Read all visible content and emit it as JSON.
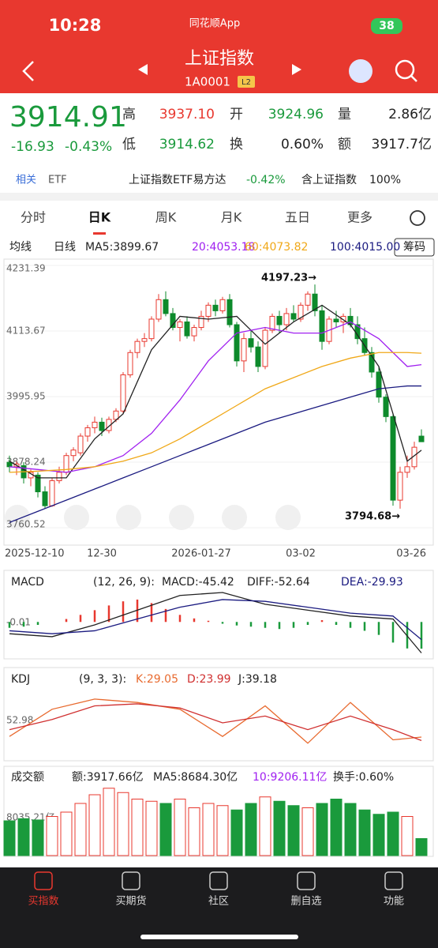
{
  "status_bar": {
    "time": "10:28",
    "app": "同花顺App",
    "battery": "38"
  },
  "header": {
    "title": "上证指数",
    "code": "1A0001",
    "level": "L2"
  },
  "quote": {
    "price": "3914.91",
    "change": "-16.93",
    "change_pct": "-0.43%",
    "high_label": "高",
    "high": "3937.10",
    "open_label": "开",
    "open": "3924.96",
    "volume_label": "量",
    "volume": "2.86亿",
    "low_label": "低",
    "low": "3914.62",
    "turnover_label": "换",
    "turnover": "0.60%",
    "amount_label": "额",
    "amount": "3917.7亿"
  },
  "related": {
    "tag": "相关",
    "etf": "ETF",
    "fund": "上证指数ETF易方达",
    "fund_change": "-0.42%",
    "holding": "含上证指数",
    "holding_pct": "100%"
  },
  "tabs": [
    "分时",
    "日K",
    "周K",
    "月K",
    "五日",
    "更多"
  ],
  "ma_bar": {
    "mode": "均线",
    "period": "日线",
    "ma5": "MA5:3899.67",
    "ma20": "20:4053.18",
    "ma60": "60:4073.82",
    "ma100": "100:4015.00",
    "chips": "筹码"
  },
  "chart_data": {
    "type": "candlestick",
    "ylim": [
      3760.52,
      4231.39
    ],
    "yticks": [
      4231.39,
      4113.67,
      3995.95,
      3878.24,
      3760.52
    ],
    "annotations": [
      "4197.23→",
      "3794.68→"
    ],
    "categories": [
      "2025-12-10",
      null,
      null,
      null,
      null,
      null,
      null,
      null,
      null,
      null,
      null,
      null,
      null,
      "12-30",
      null,
      null,
      null,
      null,
      null,
      null,
      null,
      null,
      null,
      null,
      null,
      null,
      null,
      "2026-01-27",
      null,
      null,
      null,
      null,
      null,
      null,
      null,
      null,
      null,
      null,
      null,
      null,
      null,
      "03-02",
      null,
      null,
      null,
      null,
      null,
      null,
      null,
      null,
      null,
      null,
      null,
      null,
      null,
      null,
      null,
      null,
      "03-26"
    ],
    "ohlc": [
      [
        3878,
        3890,
        3860,
        3870
      ],
      [
        3870,
        3880,
        3855,
        3875
      ],
      [
        3872,
        3878,
        3840,
        3850
      ],
      [
        3850,
        3865,
        3835,
        3860
      ],
      [
        3855,
        3860,
        3815,
        3825
      ],
      [
        3825,
        3835,
        3795,
        3800
      ],
      [
        3800,
        3850,
        3798,
        3845
      ],
      [
        3845,
        3870,
        3840,
        3860
      ],
      [
        3860,
        3895,
        3855,
        3890
      ],
      [
        3890,
        3905,
        3880,
        3900
      ],
      [
        3895,
        3930,
        3890,
        3925
      ],
      [
        3925,
        3945,
        3915,
        3940
      ],
      [
        3940,
        3960,
        3930,
        3950
      ],
      [
        3950,
        3958,
        3925,
        3935
      ],
      [
        3935,
        3960,
        3930,
        3955
      ],
      [
        3955,
        3975,
        3950,
        3970
      ],
      [
        3970,
        4040,
        3965,
        4035
      ],
      [
        4035,
        4080,
        4030,
        4075
      ],
      [
        4075,
        4100,
        4065,
        4095
      ],
      [
        4095,
        4110,
        4085,
        4100
      ],
      [
        4100,
        4140,
        4095,
        4135
      ],
      [
        4135,
        4180,
        4130,
        4170
      ],
      [
        4170,
        4185,
        4140,
        4145
      ],
      [
        4145,
        4155,
        4115,
        4120
      ],
      [
        4120,
        4135,
        4095,
        4130
      ],
      [
        4130,
        4140,
        4100,
        4105
      ],
      [
        4105,
        4125,
        4095,
        4120
      ],
      [
        4120,
        4150,
        4115,
        4140
      ],
      [
        4140,
        4165,
        4130,
        4160
      ],
      [
        4160,
        4170,
        4140,
        4150
      ],
      [
        4150,
        4175,
        4145,
        4170
      ],
      [
        4170,
        4180,
        4120,
        4125
      ],
      [
        4125,
        4130,
        4050,
        4060
      ],
      [
        4060,
        4110,
        4040,
        4100
      ],
      [
        4100,
        4115,
        4075,
        4085
      ],
      [
        4085,
        4095,
        4040,
        4050
      ],
      [
        4050,
        4120,
        4045,
        4115
      ],
      [
        4115,
        4145,
        4110,
        4140
      ],
      [
        4140,
        4150,
        4110,
        4125
      ],
      [
        4125,
        4155,
        4115,
        4145
      ],
      [
        4145,
        4160,
        4130,
        4135
      ],
      [
        4135,
        4165,
        4130,
        4160
      ],
      [
        4160,
        4185,
        4150,
        4180
      ],
      [
        4180,
        4197.23,
        4140,
        4150
      ],
      [
        4150,
        4160,
        4080,
        4095
      ],
      [
        4095,
        4140,
        4090,
        4135
      ],
      [
        4135,
        4150,
        4120,
        4130
      ],
      [
        4130,
        4145,
        4110,
        4140
      ],
      [
        4140,
        4155,
        4120,
        4125
      ],
      [
        4125,
        4140,
        4090,
        4100
      ],
      [
        4100,
        4120,
        4070,
        4075
      ],
      [
        4075,
        4085,
        4030,
        4040
      ],
      [
        4040,
        4050,
        3985,
        3995
      ],
      [
        3995,
        4000,
        3950,
        3960
      ],
      [
        3960,
        3965,
        3800,
        3810
      ],
      [
        3810,
        3870,
        3794.68,
        3860
      ],
      [
        3860,
        3890,
        3850,
        3870
      ],
      [
        3870,
        3915,
        3865,
        3905
      ],
      [
        3924.96,
        3937.1,
        3914.62,
        3914.91
      ]
    ],
    "up_color": "#e8382f",
    "down_color": "#0d8a2b",
    "series": [
      {
        "name": "MA5",
        "color": "#222222",
        "x": [
          0,
          4,
          8,
          12,
          16,
          20,
          24,
          28,
          32,
          36,
          40,
          44,
          48,
          52,
          56,
          58
        ],
        "values": [
          3880,
          3850,
          3850,
          3920,
          3965,
          4080,
          4140,
          4135,
          4140,
          4090,
          4130,
          4160,
          4125,
          4050,
          3880,
          3899.67
        ]
      },
      {
        "name": "20",
        "color": "#a020f0",
        "x": [
          0,
          4,
          8,
          12,
          16,
          20,
          24,
          28,
          32,
          36,
          40,
          44,
          48,
          52,
          56,
          58
        ],
        "values": [
          3870,
          3865,
          3860,
          3870,
          3890,
          3930,
          3990,
          4060,
          4110,
          4120,
          4110,
          4110,
          4130,
          4100,
          4050,
          4053.18
        ]
      },
      {
        "name": "60",
        "color": "#f0a818",
        "x": [
          0,
          4,
          8,
          12,
          16,
          20,
          24,
          28,
          32,
          36,
          40,
          44,
          48,
          52,
          56,
          58
        ],
        "values": [
          3860,
          3862,
          3865,
          3870,
          3880,
          3895,
          3920,
          3950,
          3980,
          4010,
          4030,
          4050,
          4065,
          4075,
          4075,
          4073.82
        ]
      },
      {
        "name": "100",
        "color": "#1a1a80",
        "x": [
          0,
          4,
          8,
          12,
          16,
          20,
          24,
          28,
          32,
          36,
          40,
          44,
          48,
          52,
          56,
          58
        ],
        "values": [
          3770,
          3790,
          3810,
          3830,
          3850,
          3870,
          3890,
          3910,
          3930,
          3950,
          3965,
          3980,
          3995,
          4010,
          4015,
          4015.0
        ]
      }
    ]
  },
  "macd": {
    "type": "macd",
    "name": "MACD",
    "params": "(12, 26, 9):",
    "macd": "MACD:-45.42",
    "diff": "DIFF:-52.64",
    "dea": "DEA:-29.93",
    "zero_label": "-0.01",
    "ylim": [
      -60,
      50
    ],
    "hist_x": [
      0,
      2,
      4,
      6,
      8,
      10,
      12,
      14,
      16,
      18,
      20,
      22,
      24,
      26,
      28,
      30,
      32,
      34,
      36,
      38,
      40,
      42,
      44,
      46,
      48,
      50,
      52,
      54,
      56,
      58
    ],
    "hist": [
      -10,
      -8,
      -5,
      0,
      5,
      12,
      20,
      28,
      35,
      38,
      32,
      22,
      12,
      6,
      2,
      -3,
      -6,
      -8,
      -10,
      -12,
      -10,
      -5,
      3,
      -5,
      -10,
      -15,
      -22,
      -35,
      -45,
      -45.42
    ],
    "line_x": [
      0,
      6,
      12,
      18,
      24,
      30,
      36,
      42,
      48,
      54,
      58
    ],
    "diff_values": [
      -20,
      -25,
      -5,
      20,
      45,
      50,
      30,
      20,
      10,
      5,
      -52.64
    ],
    "dea_values": [
      -15,
      -20,
      -15,
      5,
      25,
      38,
      35,
      25,
      15,
      10,
      -29.93
    ]
  },
  "kdj": {
    "type": "kdj",
    "name": "KDJ",
    "params": "(9, 3, 3):",
    "k": "K:29.05",
    "d": "D:23.99",
    "j": "J:39.18",
    "level_label": "52.98",
    "ylim": [
      0,
      100
    ],
    "x": [
      0,
      6,
      12,
      18,
      24,
      30,
      36,
      42,
      48,
      54,
      58
    ],
    "k_values": [
      30,
      70,
      85,
      80,
      70,
      30,
      75,
      20,
      80,
      25,
      29.05
    ],
    "d_values": [
      40,
      55,
      75,
      78,
      72,
      50,
      60,
      40,
      60,
      40,
      23.99
    ]
  },
  "volume": {
    "type": "bar",
    "name": "成交额",
    "amount": "额:3917.66亿",
    "ma5": "MA5:8684.30亿",
    "ma10": "10:9206.11亿",
    "turnover": "换手:0.60%",
    "level_label": "8035.21亿",
    "ylim": [
      0,
      16000
    ],
    "x": [
      0,
      2,
      4,
      6,
      8,
      10,
      12,
      14,
      16,
      18,
      20,
      22,
      24,
      26,
      28,
      30,
      32,
      34,
      36,
      38,
      40,
      42,
      44,
      46,
      48,
      50,
      52,
      54,
      56,
      58
    ],
    "values": [
      8000,
      8500,
      8200,
      9000,
      10000,
      12000,
      14000,
      15500,
      14500,
      13000,
      12500,
      12000,
      13000,
      11000,
      12000,
      11500,
      10500,
      12000,
      13500,
      12500,
      11500,
      11000,
      12000,
      13000,
      12000,
      10500,
      9500,
      10000,
      9000,
      3917.66
    ]
  },
  "nav": [
    "买指数",
    "买期货",
    "社区",
    "删自选",
    "功能"
  ]
}
